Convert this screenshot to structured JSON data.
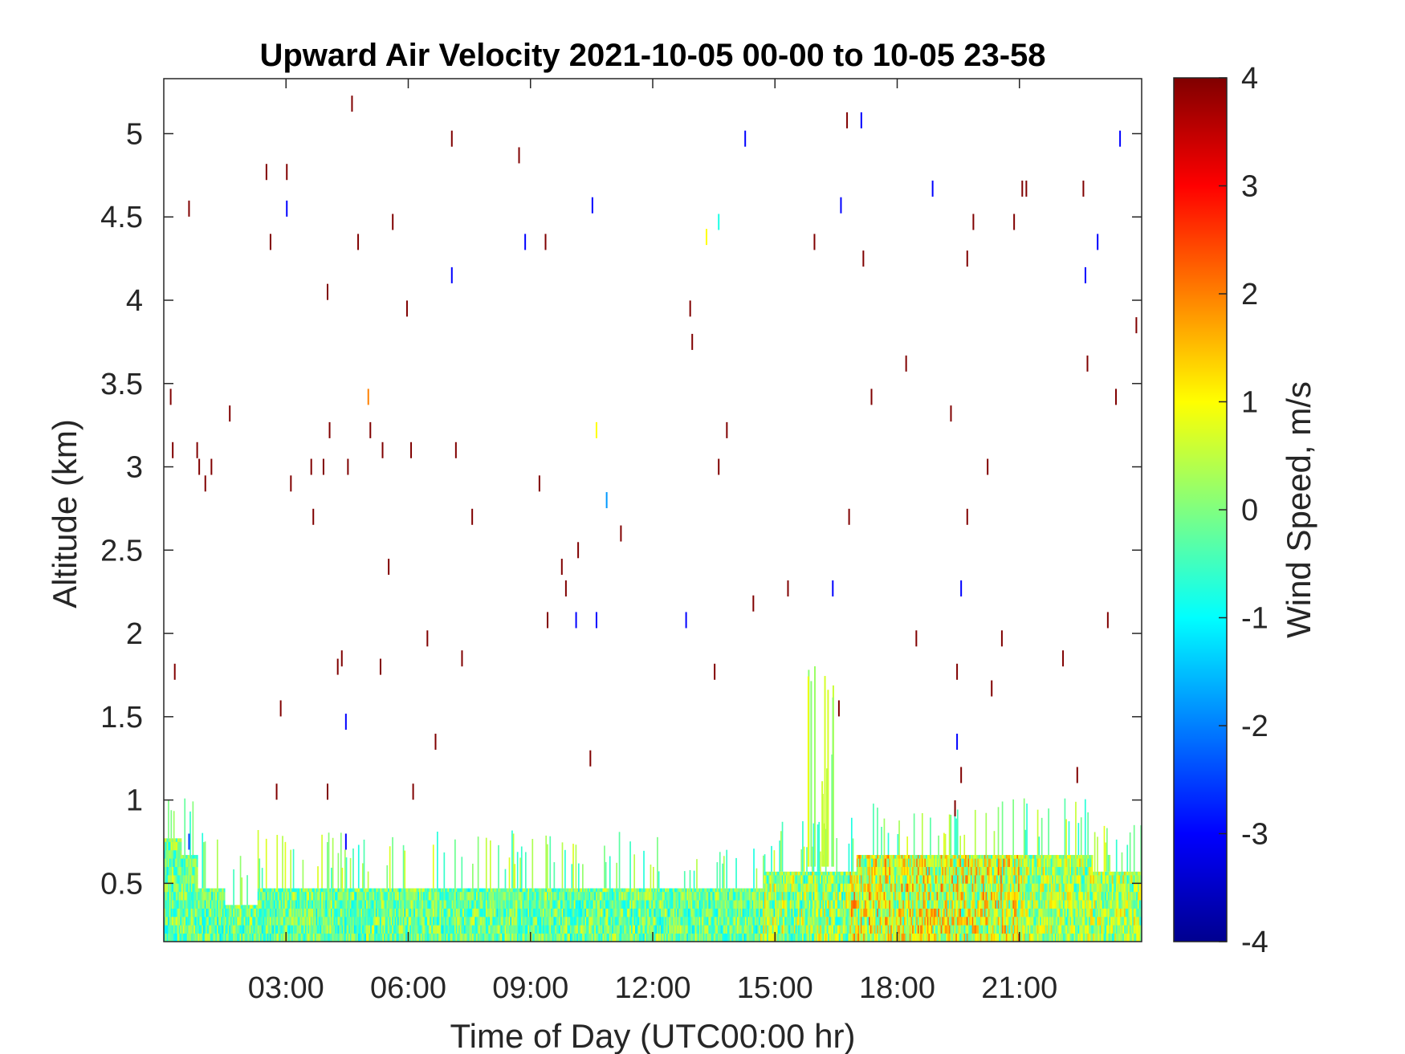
{
  "chart_data": {
    "type": "heatmap",
    "title": "Upward Air Velocity 2021-10-05 00-00 to 10-05 23-58",
    "xlabel": "Time of Day (UTC00:00 hr)",
    "ylabel": "Altitude (km)",
    "colorbar_label": "Wind Speed, m/s",
    "colormap": "jet",
    "xlim_hours": [
      0,
      24
    ],
    "ylim_km": [
      0.15,
      5.33
    ],
    "clim": [
      -4,
      4
    ],
    "x_ticks": [
      {
        "value": 3,
        "label": "03:00"
      },
      {
        "value": 6,
        "label": "06:00"
      },
      {
        "value": 9,
        "label": "09:00"
      },
      {
        "value": 12,
        "label": "12:00"
      },
      {
        "value": 15,
        "label": "15:00"
      },
      {
        "value": 18,
        "label": "18:00"
      },
      {
        "value": 21,
        "label": "21:00"
      }
    ],
    "y_ticks": [
      {
        "value": 0.5,
        "label": "0.5"
      },
      {
        "value": 1,
        "label": "1"
      },
      {
        "value": 1.5,
        "label": "1.5"
      },
      {
        "value": 2,
        "label": "2"
      },
      {
        "value": 2.5,
        "label": "2.5"
      },
      {
        "value": 3,
        "label": "3"
      },
      {
        "value": 3.5,
        "label": "3.5"
      },
      {
        "value": 4,
        "label": "4"
      },
      {
        "value": 4.5,
        "label": "4.5"
      },
      {
        "value": 5,
        "label": "5"
      }
    ],
    "colorbar_ticks": [
      {
        "value": 4,
        "label": "4"
      },
      {
        "value": 3,
        "label": "3"
      },
      {
        "value": 2,
        "label": "2"
      },
      {
        "value": 1,
        "label": "1"
      },
      {
        "value": 0,
        "label": "0"
      },
      {
        "value": -1,
        "label": "-1"
      },
      {
        "value": -2,
        "label": "-2"
      },
      {
        "value": -3,
        "label": "-3"
      },
      {
        "value": -4,
        "label": "-4"
      }
    ],
    "boundary_layer_top_km": [
      {
        "t": 0.0,
        "top": 0.77
      },
      {
        "t": 0.4,
        "top": 0.67
      },
      {
        "t": 0.8,
        "top": 0.47
      },
      {
        "t": 1.5,
        "top": 0.37
      },
      {
        "t": 2.3,
        "top": 0.47
      },
      {
        "t": 14.6,
        "top": 0.47
      },
      {
        "t": 14.7,
        "top": 0.57
      },
      {
        "t": 16.8,
        "top": 0.57
      },
      {
        "t": 17.0,
        "top": 0.67
      },
      {
        "t": 22.7,
        "top": 0.67
      },
      {
        "t": 22.8,
        "top": 0.57
      },
      {
        "t": 24.0,
        "top": 0.57
      }
    ],
    "boundary_layer_values_ms": [
      {
        "t_start": 0.0,
        "t_end": 14.6,
        "min": -1.2,
        "max": 0.9
      },
      {
        "t_start": 14.6,
        "t_end": 16.8,
        "min": -1.2,
        "max": 1.5
      },
      {
        "t_start": 16.8,
        "t_end": 21.0,
        "min": -1.0,
        "max": 2.3
      },
      {
        "t_start": 21.0,
        "t_end": 24.0,
        "min": -1.0,
        "max": 1.5
      }
    ],
    "plume": {
      "t_center": 16.1,
      "top_km": 1.9,
      "value_ms": 0.4
    },
    "sparse_points": [
      {
        "t": 0.15,
        "alt": 3.42,
        "v": 4
      },
      {
        "t": 0.2,
        "alt": 3.1,
        "v": 4
      },
      {
        "t": 0.25,
        "alt": 1.77,
        "v": 4
      },
      {
        "t": 0.6,
        "alt": 0.75,
        "v": -2.5
      },
      {
        "t": 0.6,
        "alt": 4.55,
        "v": 4
      },
      {
        "t": 0.8,
        "alt": 3.1,
        "v": 4
      },
      {
        "t": 0.85,
        "alt": 3.0,
        "v": 4
      },
      {
        "t": 1.0,
        "alt": 2.9,
        "v": 4
      },
      {
        "t": 1.15,
        "alt": 3.0,
        "v": 4
      },
      {
        "t": 1.6,
        "alt": 3.32,
        "v": 4
      },
      {
        "t": 2.5,
        "alt": 4.77,
        "v": 4
      },
      {
        "t": 2.6,
        "alt": 4.35,
        "v": 4
      },
      {
        "t": 2.75,
        "alt": 1.05,
        "v": 4
      },
      {
        "t": 2.85,
        "alt": 1.55,
        "v": 4
      },
      {
        "t": 3.0,
        "alt": 4.77,
        "v": 4
      },
      {
        "t": 3.0,
        "alt": 4.55,
        "v": -3
      },
      {
        "t": 3.1,
        "alt": 2.9,
        "v": 4
      },
      {
        "t": 3.6,
        "alt": 3.0,
        "v": 4
      },
      {
        "t": 3.65,
        "alt": 2.7,
        "v": 4
      },
      {
        "t": 3.9,
        "alt": 3.0,
        "v": 4
      },
      {
        "t": 4.0,
        "alt": 4.05,
        "v": 4
      },
      {
        "t": 4.0,
        "alt": 1.05,
        "v": 4
      },
      {
        "t": 4.05,
        "alt": 3.22,
        "v": 4
      },
      {
        "t": 4.25,
        "alt": 1.8,
        "v": 4
      },
      {
        "t": 4.35,
        "alt": 1.85,
        "v": 4
      },
      {
        "t": 4.45,
        "alt": 1.47,
        "v": -3
      },
      {
        "t": 4.45,
        "alt": 0.75,
        "v": -3
      },
      {
        "t": 4.5,
        "alt": 3.0,
        "v": 4
      },
      {
        "t": 4.6,
        "alt": 5.18,
        "v": 4
      },
      {
        "t": 4.75,
        "alt": 4.35,
        "v": 4
      },
      {
        "t": 5.0,
        "alt": 3.42,
        "v": 2
      },
      {
        "t": 5.05,
        "alt": 3.22,
        "v": 4
      },
      {
        "t": 5.3,
        "alt": 1.8,
        "v": 4
      },
      {
        "t": 5.35,
        "alt": 3.1,
        "v": 4
      },
      {
        "t": 5.5,
        "alt": 2.4,
        "v": 4
      },
      {
        "t": 5.6,
        "alt": 4.47,
        "v": 4
      },
      {
        "t": 5.95,
        "alt": 3.95,
        "v": 4
      },
      {
        "t": 6.05,
        "alt": 3.1,
        "v": 4
      },
      {
        "t": 6.1,
        "alt": 1.05,
        "v": 4
      },
      {
        "t": 6.45,
        "alt": 1.97,
        "v": 4
      },
      {
        "t": 6.65,
        "alt": 1.35,
        "v": 4
      },
      {
        "t": 7.05,
        "alt": 4.97,
        "v": 4
      },
      {
        "t": 7.05,
        "alt": 4.15,
        "v": -3
      },
      {
        "t": 7.15,
        "alt": 3.1,
        "v": 4
      },
      {
        "t": 7.3,
        "alt": 1.85,
        "v": 4
      },
      {
        "t": 7.55,
        "alt": 2.7,
        "v": 4
      },
      {
        "t": 8.7,
        "alt": 4.87,
        "v": 4
      },
      {
        "t": 8.85,
        "alt": 4.35,
        "v": -3
      },
      {
        "t": 9.2,
        "alt": 2.9,
        "v": 4
      },
      {
        "t": 9.35,
        "alt": 4.35,
        "v": 4
      },
      {
        "t": 9.4,
        "alt": 2.08,
        "v": 4
      },
      {
        "t": 9.75,
        "alt": 2.4,
        "v": 4
      },
      {
        "t": 9.85,
        "alt": 2.27,
        "v": 4
      },
      {
        "t": 10.1,
        "alt": 2.08,
        "v": -3
      },
      {
        "t": 10.15,
        "alt": 2.5,
        "v": 4
      },
      {
        "t": 10.45,
        "alt": 1.25,
        "v": 4
      },
      {
        "t": 10.5,
        "alt": 4.57,
        "v": -3
      },
      {
        "t": 10.6,
        "alt": 2.08,
        "v": -3
      },
      {
        "t": 10.6,
        "alt": 3.22,
        "v": 1
      },
      {
        "t": 10.85,
        "alt": 2.8,
        "v": -1.8
      },
      {
        "t": 11.2,
        "alt": 2.6,
        "v": 4
      },
      {
        "t": 12.8,
        "alt": 2.08,
        "v": -3
      },
      {
        "t": 12.9,
        "alt": 3.95,
        "v": 4
      },
      {
        "t": 12.95,
        "alt": 3.75,
        "v": 4
      },
      {
        "t": 13.3,
        "alt": 4.38,
        "v": 1
      },
      {
        "t": 13.5,
        "alt": 1.77,
        "v": 4
      },
      {
        "t": 13.6,
        "alt": 4.47,
        "v": -0.8
      },
      {
        "t": 13.6,
        "alt": 3.0,
        "v": 4
      },
      {
        "t": 13.8,
        "alt": 3.22,
        "v": 4
      },
      {
        "t": 14.25,
        "alt": 4.97,
        "v": -3
      },
      {
        "t": 14.45,
        "alt": 2.18,
        "v": 4
      },
      {
        "t": 15.3,
        "alt": 2.27,
        "v": 4
      },
      {
        "t": 15.95,
        "alt": 4.35,
        "v": 4
      },
      {
        "t": 16.4,
        "alt": 2.27,
        "v": -3
      },
      {
        "t": 16.55,
        "alt": 1.55,
        "v": 4
      },
      {
        "t": 16.6,
        "alt": 4.57,
        "v": -3
      },
      {
        "t": 16.75,
        "alt": 5.08,
        "v": 4
      },
      {
        "t": 16.8,
        "alt": 2.7,
        "v": 4
      },
      {
        "t": 17.1,
        "alt": 5.08,
        "v": -3
      },
      {
        "t": 17.15,
        "alt": 4.25,
        "v": 4
      },
      {
        "t": 17.35,
        "alt": 3.42,
        "v": 4
      },
      {
        "t": 18.2,
        "alt": 3.62,
        "v": 4
      },
      {
        "t": 18.45,
        "alt": 1.97,
        "v": 4
      },
      {
        "t": 18.85,
        "alt": 4.67,
        "v": -3
      },
      {
        "t": 19.3,
        "alt": 3.32,
        "v": 4
      },
      {
        "t": 19.4,
        "alt": 0.95,
        "v": 4
      },
      {
        "t": 19.45,
        "alt": 1.77,
        "v": 4
      },
      {
        "t": 19.45,
        "alt": 1.35,
        "v": -3
      },
      {
        "t": 19.55,
        "alt": 1.15,
        "v": 4
      },
      {
        "t": 19.55,
        "alt": 2.27,
        "v": -3
      },
      {
        "t": 19.7,
        "alt": 4.25,
        "v": 4
      },
      {
        "t": 19.7,
        "alt": 2.7,
        "v": 4
      },
      {
        "t": 19.85,
        "alt": 4.47,
        "v": 4
      },
      {
        "t": 20.2,
        "alt": 3.0,
        "v": 4
      },
      {
        "t": 20.3,
        "alt": 1.67,
        "v": 4
      },
      {
        "t": 20.55,
        "alt": 1.97,
        "v": 4
      },
      {
        "t": 20.85,
        "alt": 4.47,
        "v": 4
      },
      {
        "t": 21.05,
        "alt": 4.67,
        "v": 4
      },
      {
        "t": 21.15,
        "alt": 4.67,
        "v": 4
      },
      {
        "t": 22.05,
        "alt": 1.85,
        "v": 4
      },
      {
        "t": 22.4,
        "alt": 1.15,
        "v": 4
      },
      {
        "t": 22.55,
        "alt": 4.67,
        "v": 4
      },
      {
        "t": 22.6,
        "alt": 4.15,
        "v": -3
      },
      {
        "t": 22.65,
        "alt": 3.62,
        "v": 4
      },
      {
        "t": 22.9,
        "alt": 4.35,
        "v": -3
      },
      {
        "t": 23.15,
        "alt": 2.08,
        "v": 4
      },
      {
        "t": 23.35,
        "alt": 3.42,
        "v": 4
      },
      {
        "t": 23.45,
        "alt": 4.97,
        "v": -3
      },
      {
        "t": 23.85,
        "alt": 3.85,
        "v": 4
      }
    ]
  }
}
